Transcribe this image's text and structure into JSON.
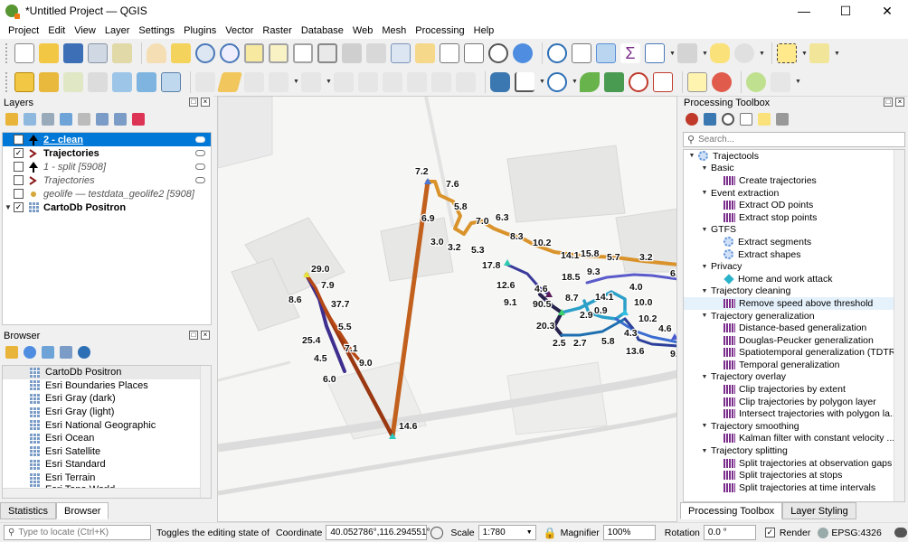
{
  "window": {
    "title": "*Untitled Project — QGIS"
  },
  "menu": [
    "Project",
    "Edit",
    "View",
    "Layer",
    "Settings",
    "Plugins",
    "Vector",
    "Raster",
    "Database",
    "Web",
    "Mesh",
    "Processing",
    "Help"
  ],
  "layers_panel": {
    "title": "Layers",
    "items": [
      {
        "label": "2 - clean",
        "checked": true,
        "style": "selected"
      },
      {
        "label": "Trajectories",
        "checked": true,
        "style": "bold"
      },
      {
        "label": "1 - split [5908]",
        "checked": false,
        "style": "italic"
      },
      {
        "label": "Trajectories",
        "checked": false,
        "style": "italic"
      },
      {
        "label": "geolife — testdata_geolife2 [5908]",
        "checked": false,
        "style": "italic"
      },
      {
        "label": "CartoDb Positron",
        "checked": true,
        "style": "bold"
      }
    ]
  },
  "browser_panel": {
    "title": "Browser",
    "items": [
      "CartoDb Positron",
      "Esri Boundaries Places",
      "Esri Gray (dark)",
      "Esri Gray (light)",
      "Esri National Geographic",
      "Esri Ocean",
      "Esri Satellite",
      "Esri Standard",
      "Esri Terrain",
      "Esri Topo World"
    ]
  },
  "left_tabs": [
    "Statistics",
    "Browser"
  ],
  "map_labels": [
    {
      "t": "7.2"
    },
    {
      "t": "7.6"
    },
    {
      "t": "5.8"
    },
    {
      "t": "6.9"
    },
    {
      "t": "7.0"
    },
    {
      "t": "6.3"
    },
    {
      "t": "3.0"
    },
    {
      "t": "3.2"
    },
    {
      "t": "5.3"
    },
    {
      "t": "8.3"
    },
    {
      "t": "10.2"
    },
    {
      "t": "14.1"
    },
    {
      "t": "15.8"
    },
    {
      "t": "5.7"
    },
    {
      "t": "3.2"
    },
    {
      "t": "6."
    },
    {
      "t": "17.8"
    },
    {
      "t": "18.5"
    },
    {
      "t": "9.3"
    },
    {
      "t": "4.0"
    },
    {
      "t": "12.6"
    },
    {
      "t": "4.6"
    },
    {
      "t": "9.1"
    },
    {
      "t": "8.7"
    },
    {
      "t": "14.1"
    },
    {
      "t": "10.0"
    },
    {
      "t": "90.5"
    },
    {
      "t": "0.9"
    },
    {
      "t": "2.9"
    },
    {
      "t": "10.2"
    },
    {
      "t": "20.3"
    },
    {
      "t": "4.3"
    },
    {
      "t": "4.6"
    },
    {
      "t": "2.5"
    },
    {
      "t": "2.7"
    },
    {
      "t": "5.8"
    },
    {
      "t": "13.6"
    },
    {
      "t": "9."
    },
    {
      "t": "29.0"
    },
    {
      "t": "7.9"
    },
    {
      "t": "8.6"
    },
    {
      "t": "37.7"
    },
    {
      "t": "5.5"
    },
    {
      "t": "25.4"
    },
    {
      "t": "7.1"
    },
    {
      "t": "4.5"
    },
    {
      "t": "9.0"
    },
    {
      "t": "6.0"
    },
    {
      "t": "14.6"
    }
  ],
  "toolbox": {
    "title": "Processing Toolbox",
    "search_placeholder": "Search...",
    "tree": [
      {
        "label": "Trajectools",
        "level": 0,
        "kind": "provider",
        "expanded": true
      },
      {
        "label": "Basic",
        "level": 1,
        "kind": "group",
        "expanded": true
      },
      {
        "label": "Create trajectories",
        "level": 2,
        "kind": "alg"
      },
      {
        "label": "Event extraction",
        "level": 1,
        "kind": "group",
        "expanded": true
      },
      {
        "label": "Extract OD points",
        "level": 2,
        "kind": "alg"
      },
      {
        "label": "Extract stop points",
        "level": 2,
        "kind": "alg"
      },
      {
        "label": "GTFS",
        "level": 1,
        "kind": "group",
        "expanded": true
      },
      {
        "label": "Extract segments",
        "level": 2,
        "kind": "gear"
      },
      {
        "label": "Extract shapes",
        "level": 2,
        "kind": "gear"
      },
      {
        "label": "Privacy",
        "level": 1,
        "kind": "group",
        "expanded": true
      },
      {
        "label": "Home and work attack",
        "level": 2,
        "kind": "diamond"
      },
      {
        "label": "Trajectory cleaning",
        "level": 1,
        "kind": "group",
        "expanded": true
      },
      {
        "label": "Remove speed above threshold",
        "level": 2,
        "kind": "alg",
        "highlight": true
      },
      {
        "label": "Trajectory generalization",
        "level": 1,
        "kind": "group",
        "expanded": true
      },
      {
        "label": "Distance-based generalization",
        "level": 2,
        "kind": "alg"
      },
      {
        "label": "Douglas-Peucker generalization",
        "level": 2,
        "kind": "alg"
      },
      {
        "label": "Spatiotemporal generalization (TDTR)",
        "level": 2,
        "kind": "alg"
      },
      {
        "label": "Temporal generalization",
        "level": 2,
        "kind": "alg"
      },
      {
        "label": "Trajectory overlay",
        "level": 1,
        "kind": "group",
        "expanded": true
      },
      {
        "label": "Clip trajectories by extent",
        "level": 2,
        "kind": "alg"
      },
      {
        "label": "Clip trajectories by polygon layer",
        "level": 2,
        "kind": "alg"
      },
      {
        "label": "Intersect trajectories with polygon la...",
        "level": 2,
        "kind": "alg"
      },
      {
        "label": "Trajectory smoothing",
        "level": 1,
        "kind": "group",
        "expanded": true
      },
      {
        "label": "Kalman filter with constant velocity ...",
        "level": 2,
        "kind": "alg"
      },
      {
        "label": "Trajectory splitting",
        "level": 1,
        "kind": "group",
        "expanded": true
      },
      {
        "label": "Split trajectories at observation gaps",
        "level": 2,
        "kind": "alg"
      },
      {
        "label": "Split trajectories at stops",
        "level": 2,
        "kind": "alg"
      },
      {
        "label": "Split trajectories at time intervals",
        "level": 2,
        "kind": "alg"
      }
    ]
  },
  "right_tabs": [
    "Processing Toolbox",
    "Layer Styling"
  ],
  "status": {
    "locate_placeholder": "Type to locate (Ctrl+K)",
    "message": "Toggles the editing state of the",
    "coordinate_label": "Coordinate",
    "coordinate": "40.052786°,116.294551°",
    "scale_label": "Scale",
    "scale": "1:780",
    "magnifier_label": "Magnifier",
    "magnifier": "100%",
    "rotation_label": "Rotation",
    "rotation": "0.0 °",
    "render_label": "Render",
    "render_checked": true,
    "crs": "EPSG:4326"
  }
}
